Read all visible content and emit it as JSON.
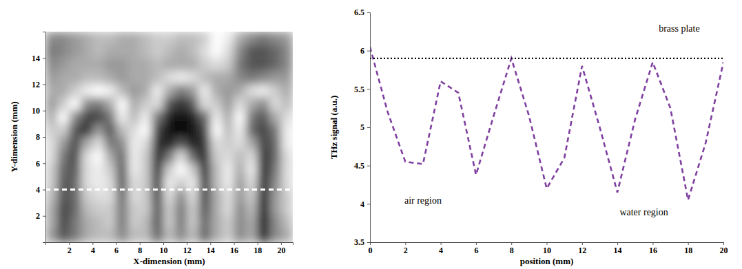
{
  "chart_data": [
    {
      "type": "heatmap",
      "x_label": "X-dimension (mm)",
      "y_label": "Y-dimension (mm)",
      "x": [
        0.5,
        1.5,
        2.5,
        3.5,
        4.5,
        5.5,
        6.5,
        7.5,
        8.5,
        9.5,
        10.5,
        11.5,
        12.5,
        13.5,
        14.5,
        15.5,
        16.5,
        17.5,
        18.5,
        19.5,
        20.5
      ],
      "y": [
        15.5,
        14.5,
        13.5,
        12.5,
        11.5,
        10.5,
        9.5,
        8.5,
        7.5,
        6.5,
        5.5,
        4.5,
        3.5,
        2.5,
        1.5,
        0.5
      ],
      "values": [
        [
          0.5,
          0.5,
          0.55,
          0.6,
          0.65,
          0.65,
          0.6,
          0.6,
          0.65,
          0.7,
          0.7,
          0.65,
          0.65,
          0.7,
          0.85,
          0.8,
          0.6,
          0.5,
          0.45,
          0.5,
          0.55
        ],
        [
          0.45,
          0.5,
          0.55,
          0.6,
          0.65,
          0.6,
          0.6,
          0.6,
          0.65,
          0.7,
          0.65,
          0.6,
          0.65,
          0.75,
          0.85,
          0.75,
          0.5,
          0.35,
          0.35,
          0.4,
          0.5
        ],
        [
          0.5,
          0.55,
          0.6,
          0.6,
          0.6,
          0.55,
          0.55,
          0.6,
          0.6,
          0.65,
          0.6,
          0.6,
          0.6,
          0.7,
          0.75,
          0.7,
          0.45,
          0.35,
          0.35,
          0.4,
          0.5
        ],
        [
          0.55,
          0.6,
          0.6,
          0.65,
          0.65,
          0.6,
          0.55,
          0.6,
          0.6,
          0.65,
          0.75,
          0.8,
          0.75,
          0.65,
          0.6,
          0.6,
          0.5,
          0.45,
          0.5,
          0.55,
          0.55
        ],
        [
          0.6,
          0.6,
          0.7,
          0.8,
          0.85,
          0.8,
          0.65,
          0.55,
          0.6,
          0.8,
          0.6,
          0.45,
          0.55,
          0.8,
          0.6,
          0.55,
          0.6,
          0.75,
          0.8,
          0.7,
          0.6
        ],
        [
          0.55,
          0.7,
          0.85,
          0.5,
          0.45,
          0.6,
          0.85,
          0.6,
          0.7,
          0.75,
          0.35,
          0.25,
          0.35,
          0.75,
          0.7,
          0.55,
          0.75,
          0.6,
          0.5,
          0.75,
          0.65
        ],
        [
          0.6,
          0.85,
          0.5,
          0.3,
          0.3,
          0.45,
          0.8,
          0.65,
          0.8,
          0.45,
          0.2,
          0.15,
          0.2,
          0.4,
          0.8,
          0.6,
          0.85,
          0.45,
          0.35,
          0.6,
          0.75
        ],
        [
          0.7,
          0.7,
          0.35,
          0.25,
          0.55,
          0.35,
          0.65,
          0.75,
          0.85,
          0.3,
          0.15,
          0.1,
          0.15,
          0.3,
          0.85,
          0.65,
          0.8,
          0.4,
          0.3,
          0.45,
          0.8
        ],
        [
          0.75,
          0.55,
          0.3,
          0.6,
          0.75,
          0.45,
          0.5,
          0.8,
          0.75,
          0.25,
          0.2,
          0.35,
          0.2,
          0.25,
          0.75,
          0.7,
          0.75,
          0.6,
          0.3,
          0.4,
          0.8
        ],
        [
          0.75,
          0.45,
          0.3,
          0.75,
          0.85,
          0.6,
          0.4,
          0.8,
          0.7,
          0.2,
          0.45,
          0.75,
          0.4,
          0.2,
          0.7,
          0.75,
          0.65,
          0.75,
          0.25,
          0.4,
          0.75
        ],
        [
          0.7,
          0.4,
          0.35,
          0.75,
          0.8,
          0.7,
          0.35,
          0.8,
          0.7,
          0.2,
          0.7,
          0.85,
          0.7,
          0.2,
          0.65,
          0.8,
          0.6,
          0.8,
          0.2,
          0.45,
          0.75
        ],
        [
          0.7,
          0.35,
          0.4,
          0.75,
          0.8,
          0.75,
          0.35,
          0.75,
          0.7,
          0.25,
          0.8,
          0.7,
          0.8,
          0.25,
          0.65,
          0.8,
          0.55,
          0.75,
          0.2,
          0.5,
          0.75
        ],
        [
          0.65,
          0.35,
          0.4,
          0.7,
          0.75,
          0.75,
          0.4,
          0.75,
          0.7,
          0.3,
          0.75,
          0.5,
          0.75,
          0.3,
          0.6,
          0.75,
          0.55,
          0.7,
          0.15,
          0.55,
          0.7
        ],
        [
          0.6,
          0.3,
          0.4,
          0.65,
          0.7,
          0.7,
          0.45,
          0.7,
          0.7,
          0.35,
          0.7,
          0.45,
          0.7,
          0.35,
          0.6,
          0.75,
          0.5,
          0.65,
          0.15,
          0.55,
          0.7
        ],
        [
          0.6,
          0.3,
          0.45,
          0.6,
          0.65,
          0.7,
          0.45,
          0.7,
          0.65,
          0.35,
          0.7,
          0.45,
          0.7,
          0.4,
          0.6,
          0.7,
          0.5,
          0.6,
          0.15,
          0.5,
          0.65
        ],
        [
          0.55,
          0.35,
          0.45,
          0.6,
          0.65,
          0.65,
          0.5,
          0.65,
          0.65,
          0.4,
          0.65,
          0.5,
          0.65,
          0.4,
          0.6,
          0.7,
          0.5,
          0.6,
          0.2,
          0.5,
          0.6
        ]
      ],
      "xlim": [
        0,
        21
      ],
      "ylim": [
        0,
        16
      ],
      "xticks": [
        2,
        4,
        6,
        8,
        10,
        12,
        14,
        16,
        18,
        20
      ],
      "yticks": [
        2,
        4,
        6,
        8,
        10,
        12,
        14
      ],
      "hlines": [
        {
          "value": 4,
          "color": "#ffffff",
          "line_style": "dashed"
        }
      ]
    },
    {
      "type": "line",
      "x_label": "position (mm)",
      "y_label": "THz signal (a.u.)",
      "x": [
        0,
        1,
        2,
        3,
        4,
        5,
        6,
        7,
        8,
        9,
        10,
        11,
        12,
        13,
        14,
        15,
        16,
        17,
        18,
        19,
        20
      ],
      "series": [
        {
          "color": "#7f3f9f",
          "line_style": "dashed",
          "values": [
            6.05,
            5.2,
            4.55,
            4.52,
            5.6,
            5.45,
            4.38,
            5.15,
            5.9,
            5.15,
            4.2,
            4.6,
            5.8,
            5.0,
            4.15,
            5.1,
            5.85,
            5.25,
            4.05,
            4.8,
            5.85
          ]
        }
      ],
      "xlim": [
        0,
        20
      ],
      "ylim": [
        3.5,
        6.5
      ],
      "xticks": [
        0,
        2,
        4,
        6,
        8,
        10,
        12,
        14,
        16,
        18,
        20
      ],
      "yticks": [
        3.5,
        4,
        4.5,
        5,
        5.5,
        6,
        6.5
      ],
      "hlines": [
        {
          "value": 5.9,
          "color": "#000000",
          "line_style": "dotted"
        }
      ],
      "annotations": [
        {
          "text": "brass plate",
          "x": 17.5,
          "y": 6.25
        },
        {
          "text": "air region",
          "x": 3,
          "y": 4.0
        },
        {
          "text": "water region",
          "x": 15.5,
          "y": 3.85
        }
      ]
    }
  ]
}
